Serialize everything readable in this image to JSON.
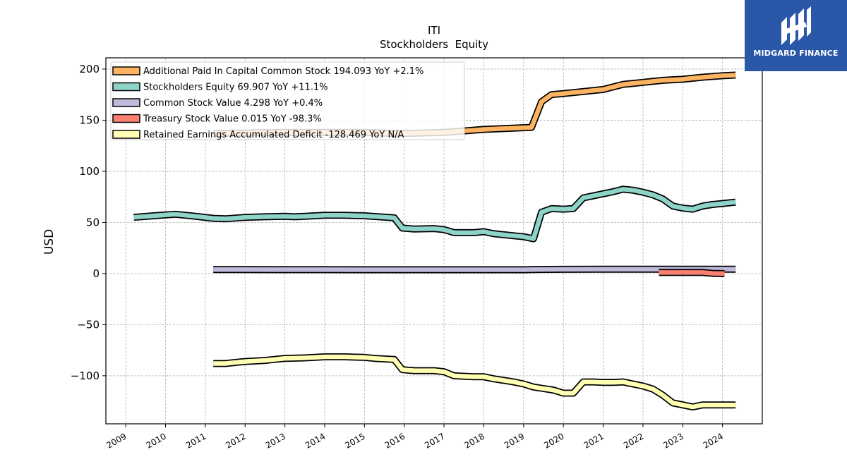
{
  "brand": {
    "name": "MIDGARD FINANCE",
    "color": "#2a57a8"
  },
  "chart_data": {
    "type": "line",
    "title": "ITI",
    "subtitle": "Stockholders  Equity",
    "ylabel": "USD",
    "xlabel": "",
    "xlim": [
      2008.5,
      2025.0
    ],
    "ylim": [
      -147,
      211
    ],
    "yticks": [
      -100,
      -50,
      0,
      50,
      100,
      150,
      200
    ],
    "ytick_labels": [
      "−100",
      "−50",
      "0",
      "50",
      "100",
      "150",
      "200"
    ],
    "xticks": [
      2009,
      2010,
      2011,
      2012,
      2013,
      2014,
      2015,
      2016,
      2017,
      2018,
      2019,
      2020,
      2021,
      2022,
      2023,
      2024
    ],
    "grid": true,
    "legend_position": "top-left",
    "series": [
      {
        "name": "Additional Paid In Capital Common Stock",
        "legend": "Additional Paid In Capital Common Stock  194.093 YoY +2.1%",
        "color": "#fdb462",
        "x": [
          2011.2,
          2012,
          2013,
          2014,
          2015,
          2015.75,
          2016,
          2017,
          2018,
          2019.2,
          2019.45,
          2019.7,
          2020,
          2020.5,
          2021,
          2021.5,
          2022,
          2022.5,
          2023,
          2023.5,
          2024,
          2024.33
        ],
        "y": [
          137,
          137.5,
          138,
          138,
          138,
          137,
          137,
          138,
          141,
          143,
          168,
          175,
          176,
          178,
          180,
          185,
          187,
          189,
          190,
          192,
          193.5,
          194.1
        ]
      },
      {
        "name": "Stockholders Equity",
        "legend": "Stockholders  Equity  69.907 YoY +11.1%",
        "color": "#8dd3c7",
        "x": [
          2009.2,
          2009.7,
          2010.25,
          2010.75,
          2011.2,
          2011.5,
          2012,
          2012.5,
          2013,
          2013.25,
          2013.5,
          2014,
          2014.5,
          2015,
          2015.75,
          2015.95,
          2016.25,
          2016.75,
          2017,
          2017.25,
          2017.75,
          2018,
          2018.25,
          2018.75,
          2019,
          2019.25,
          2019.45,
          2019.7,
          2020,
          2020.25,
          2020.5,
          2020.75,
          2021,
          2021.25,
          2021.5,
          2021.75,
          2022,
          2022.25,
          2022.5,
          2022.75,
          2023,
          2023.25,
          2023.5,
          2023.75,
          2024,
          2024.33
        ],
        "y": [
          55,
          56.5,
          58,
          56,
          54,
          53.5,
          55,
          55.5,
          56,
          55.5,
          56,
          57,
          57,
          56.5,
          54.5,
          44.5,
          43.5,
          44,
          43,
          40,
          40,
          41,
          39,
          37,
          36,
          34,
          60,
          63.5,
          63,
          63.5,
          74,
          76,
          78,
          80,
          82.5,
          81.5,
          79.5,
          77,
          73,
          66,
          64,
          63,
          66,
          67.5,
          68.5,
          69.9
        ]
      },
      {
        "name": "Common Stock Value",
        "legend": "Common Stock Value  4.298 YoY +0.4%",
        "color": "#bebada",
        "x": [
          2011.2,
          2012,
          2013,
          2014,
          2015,
          2016,
          2017,
          2018,
          2019,
          2019.4,
          2020,
          2021,
          2022,
          2023,
          2024,
          2024.33
        ],
        "y": [
          3.9,
          3.9,
          3.8,
          3.8,
          3.7,
          3.7,
          3.7,
          3.7,
          3.7,
          4.0,
          4.1,
          4.2,
          4.2,
          4.25,
          4.28,
          4.3
        ]
      },
      {
        "name": "Treasury Stock Value",
        "legend": "Treasury Stock Value  0.015 YoY -98.3%",
        "color": "#fb8072",
        "x": [
          2022.4,
          2022.75,
          2023,
          2023.25,
          2023.5,
          2023.75,
          2024.05
        ],
        "y": [
          1.0,
          1.0,
          1.0,
          1.0,
          1.0,
          0.2,
          0.0
        ]
      },
      {
        "name": "Retained Earnings Accumulated Deficit",
        "legend": "Retained Earnings Accumulated Deficit  -128.469 YoY N/A",
        "color": "#ffffb3",
        "x": [
          2011.2,
          2011.5,
          2011.75,
          2012,
          2012.5,
          2013,
          2013.5,
          2014,
          2014.5,
          2015,
          2015.25,
          2015.75,
          2015.95,
          2016.25,
          2016.75,
          2017,
          2017.25,
          2017.75,
          2018,
          2018.25,
          2018.75,
          2019,
          2019.25,
          2019.75,
          2020,
          2020.25,
          2020.5,
          2020.75,
          2021,
          2021.25,
          2021.5,
          2021.75,
          2022,
          2022.25,
          2022.5,
          2022.75,
          2023,
          2023.25,
          2023.5,
          2023.75,
          2024,
          2024.33
        ],
        "y": [
          -88,
          -88,
          -87,
          -86,
          -85,
          -83,
          -82.5,
          -81.5,
          -81.5,
          -82,
          -83,
          -84,
          -94,
          -95,
          -95,
          -96,
          -100,
          -101,
          -101,
          -103,
          -106,
          -108,
          -111,
          -114,
          -117,
          -117,
          -106,
          -106,
          -106.5,
          -106.5,
          -106,
          -108,
          -110,
          -113,
          -119,
          -126.5,
          -128.5,
          -130.5,
          -128.5,
          -128.5,
          -128.5,
          -128.5
        ]
      }
    ]
  }
}
